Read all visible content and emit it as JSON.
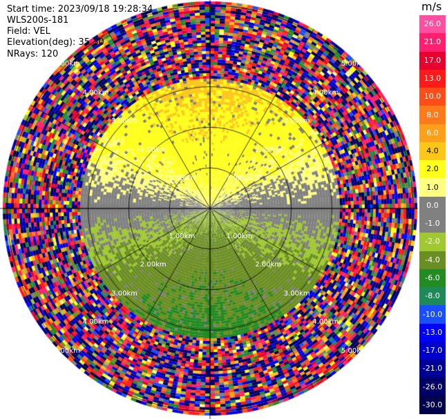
{
  "header": {
    "start_time": "Start time: 2023/09/18 19:28:34",
    "instrument": "WLS200s-181",
    "field": "Field: VEL",
    "elevation": "Elevation(deg): 35.30",
    "nrays": "NRays: 120"
  },
  "colorbar": {
    "unit": "m/s",
    "labels": [
      "26.0",
      "21.0",
      "17.0",
      "13.0",
      "10.0",
      "8.0",
      "6.0",
      "4.0",
      "2.0",
      "1.0",
      "0.0",
      "-1.0",
      "-2.0",
      "-4.0",
      "-6.0",
      "-8.0",
      "-10.0",
      "-13.0",
      "-17.0",
      "-21.0",
      "-26.0",
      "-30.0"
    ],
    "colors": [
      "#ff4fa0",
      "#ff1f6e",
      "#e8002f",
      "#ff1a1a",
      "#ff4d1a",
      "#ff7a1a",
      "#ff9f1a",
      "#ffc61a",
      "#ffff1a",
      "#ffff80",
      "#808080",
      "#808080",
      "#a0c830",
      "#6b8e23",
      "#228b22",
      "#1e8a5a",
      "#1a4fff",
      "#0000ff",
      "#0000cc",
      "#000099",
      "#000066",
      "#00004d"
    ]
  },
  "chart_data": {
    "type": "ppi",
    "field": "VEL",
    "units": "m/s",
    "nrays": 120,
    "range_rings_km": [
      1.0,
      2.0,
      3.0,
      4.0,
      5.0
    ],
    "ring_labels": [
      "1.00km",
      "2.00km",
      "3.00km",
      "4.00km",
      "5.00km"
    ],
    "spokes_deg": [
      0,
      30,
      60,
      90,
      120,
      150,
      180,
      210,
      240,
      270,
      300,
      330
    ],
    "vmin": -30.0,
    "vmax": 26.0
  }
}
